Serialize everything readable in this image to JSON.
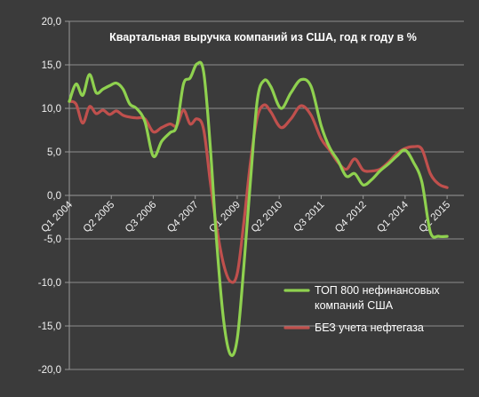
{
  "chart_data": {
    "type": "line",
    "title": "Квартальная выручка компаний из  США, год к году в %",
    "xlabel": "",
    "ylabel": "",
    "ylim": [
      -20,
      20
    ],
    "y_ticks": [
      "-20,0",
      "-15,0",
      "-10,0",
      "-5,0",
      "0,0",
      "5,0",
      "10,0",
      "15,0",
      "20,0"
    ],
    "x_ticks": [
      "Q1 2004",
      "Q2 2005",
      "Q3 2006",
      "Q4 2007",
      "Q1 2009",
      "Q2 2010",
      "Q3 2011",
      "Q4 2012",
      "Q1 2014",
      "Q2 2015"
    ],
    "grid": true,
    "legend_position": "bottom-right",
    "x_range": [
      2004.0,
      2015.75
    ],
    "series": [
      {
        "name": "ТОП 800  нефинансовых компаний США",
        "color": "#8fd14f",
        "points": [
          [
            2004.0,
            10.8
          ],
          [
            2004.2,
            12.8
          ],
          [
            2004.4,
            11.5
          ],
          [
            2004.6,
            13.9
          ],
          [
            2004.8,
            11.8
          ],
          [
            2005.0,
            12.2
          ],
          [
            2005.2,
            12.6
          ],
          [
            2005.4,
            12.9
          ],
          [
            2005.6,
            12.2
          ],
          [
            2005.8,
            10.5
          ],
          [
            2006.0,
            10.0
          ],
          [
            2006.25,
            8.5
          ],
          [
            2006.5,
            4.5
          ],
          [
            2006.75,
            6.2
          ],
          [
            2007.0,
            7.2
          ],
          [
            2007.2,
            8.0
          ],
          [
            2007.4,
            12.8
          ],
          [
            2007.6,
            13.5
          ],
          [
            2007.8,
            15.1
          ],
          [
            2008.0,
            14.2
          ],
          [
            2008.2,
            5.5
          ],
          [
            2008.4,
            -6.0
          ],
          [
            2008.6,
            -14.5
          ],
          [
            2008.8,
            -18.3
          ],
          [
            2009.0,
            -16.5
          ],
          [
            2009.2,
            -8.0
          ],
          [
            2009.4,
            2.0
          ],
          [
            2009.6,
            11.0
          ],
          [
            2009.8,
            13.2
          ],
          [
            2010.0,
            12.5
          ],
          [
            2010.3,
            10.0
          ],
          [
            2010.6,
            11.8
          ],
          [
            2010.9,
            13.3
          ],
          [
            2011.2,
            12.5
          ],
          [
            2011.5,
            8.0
          ],
          [
            2011.75,
            5.5
          ],
          [
            2012.0,
            4.0
          ],
          [
            2012.25,
            2.2
          ],
          [
            2012.5,
            2.5
          ],
          [
            2012.75,
            1.2
          ],
          [
            2013.0,
            1.8
          ],
          [
            2013.25,
            2.8
          ],
          [
            2013.5,
            3.6
          ],
          [
            2013.75,
            4.5
          ],
          [
            2014.0,
            5.2
          ],
          [
            2014.25,
            3.8
          ],
          [
            2014.5,
            1.5
          ],
          [
            2014.75,
            -4.2
          ],
          [
            2015.0,
            -4.7
          ],
          [
            2015.25,
            -4.7
          ]
        ]
      },
      {
        "name": "БЕЗ учета нефтегаза",
        "color": "#c0504d",
        "points": [
          [
            2004.0,
            10.8
          ],
          [
            2004.2,
            10.5
          ],
          [
            2004.4,
            8.3
          ],
          [
            2004.6,
            10.2
          ],
          [
            2004.8,
            9.4
          ],
          [
            2005.0,
            9.8
          ],
          [
            2005.2,
            9.3
          ],
          [
            2005.4,
            9.7
          ],
          [
            2005.6,
            9.2
          ],
          [
            2005.8,
            9.0
          ],
          [
            2006.0,
            8.9
          ],
          [
            2006.25,
            8.8
          ],
          [
            2006.5,
            7.3
          ],
          [
            2006.75,
            7.8
          ],
          [
            2007.0,
            8.2
          ],
          [
            2007.2,
            8.0
          ],
          [
            2007.4,
            9.8
          ],
          [
            2007.6,
            8.2
          ],
          [
            2007.8,
            8.8
          ],
          [
            2008.0,
            7.6
          ],
          [
            2008.2,
            1.5
          ],
          [
            2008.4,
            -4.0
          ],
          [
            2008.6,
            -8.0
          ],
          [
            2008.8,
            -9.9
          ],
          [
            2009.0,
            -9.0
          ],
          [
            2009.2,
            -3.0
          ],
          [
            2009.4,
            4.0
          ],
          [
            2009.6,
            9.0
          ],
          [
            2009.8,
            10.4
          ],
          [
            2010.0,
            9.6
          ],
          [
            2010.3,
            7.8
          ],
          [
            2010.6,
            8.8
          ],
          [
            2010.9,
            10.3
          ],
          [
            2011.2,
            9.2
          ],
          [
            2011.5,
            6.5
          ],
          [
            2011.75,
            5.2
          ],
          [
            2012.0,
            3.8
          ],
          [
            2012.25,
            3.0
          ],
          [
            2012.5,
            4.2
          ],
          [
            2012.75,
            2.9
          ],
          [
            2013.0,
            2.8
          ],
          [
            2013.25,
            3.0
          ],
          [
            2013.5,
            3.8
          ],
          [
            2013.75,
            4.8
          ],
          [
            2014.0,
            5.4
          ],
          [
            2014.25,
            5.6
          ],
          [
            2014.5,
            5.3
          ],
          [
            2014.75,
            2.5
          ],
          [
            2015.0,
            1.3
          ],
          [
            2015.25,
            0.9
          ]
        ]
      }
    ]
  }
}
